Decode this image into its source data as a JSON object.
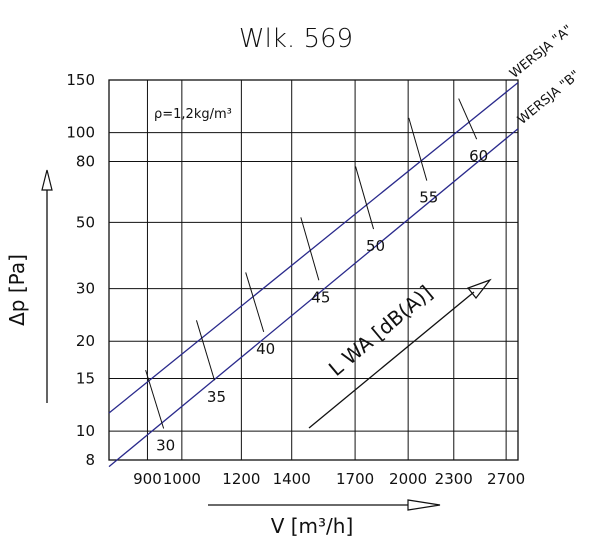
{
  "chart_data": {
    "type": "line",
    "title": "Wlk. 569",
    "note": "ρ=1,2kg/m³",
    "xlabel": "V [m³/h]",
    "ylabel": "Δp [Pa]",
    "x_scale": "log",
    "y_scale": "log",
    "xlim": [
      800,
      2800
    ],
    "ylim": [
      8,
      150
    ],
    "x_ticks": [
      900,
      1000,
      1200,
      1400,
      1700,
      2000,
      2300,
      2700
    ],
    "x_tick_labels": [
      "900",
      "1000",
      "1200",
      "1400",
      "1700",
      "2000",
      "2300",
      "2700"
    ],
    "y_ticks": [
      8,
      10,
      15,
      20,
      30,
      50,
      80,
      100,
      150
    ],
    "y_tick_labels": [
      "8",
      "10",
      "15",
      "20",
      "30",
      "50",
      "80",
      "100",
      "150"
    ],
    "grid": true,
    "series": [
      {
        "name": "WERSJA \"A\"",
        "color": "#2a2a8c",
        "x": [
          800,
          2800
        ],
        "y": [
          11.5,
          147
        ]
      },
      {
        "name": "WERSJA \"B\"",
        "color": "#2a2a8c",
        "x": [
          800,
          2800
        ],
        "y": [
          7.6,
          103
        ]
      }
    ],
    "sound_levels": {
      "label": "L WA [dB(A)]",
      "marks": [
        {
          "value": "30",
          "x": 920,
          "y_from": 16.0,
          "y_to": 10.2
        },
        {
          "value": "35",
          "x": 1075,
          "y_from": 23.5,
          "y_to": 14.8
        },
        {
          "value": "40",
          "x": 1250,
          "y_from": 34.0,
          "y_to": 21.5
        },
        {
          "value": "45",
          "x": 1480,
          "y_from": 52.0,
          "y_to": 32.0
        },
        {
          "value": "50",
          "x": 1750,
          "y_from": 77.0,
          "y_to": 47.5
        },
        {
          "value": "55",
          "x": 2060,
          "y_from": 112.0,
          "y_to": 69.0
        },
        {
          "value": "60",
          "x": 2400,
          "y_from": 130.0,
          "y_to": 95.0
        }
      ]
    }
  }
}
